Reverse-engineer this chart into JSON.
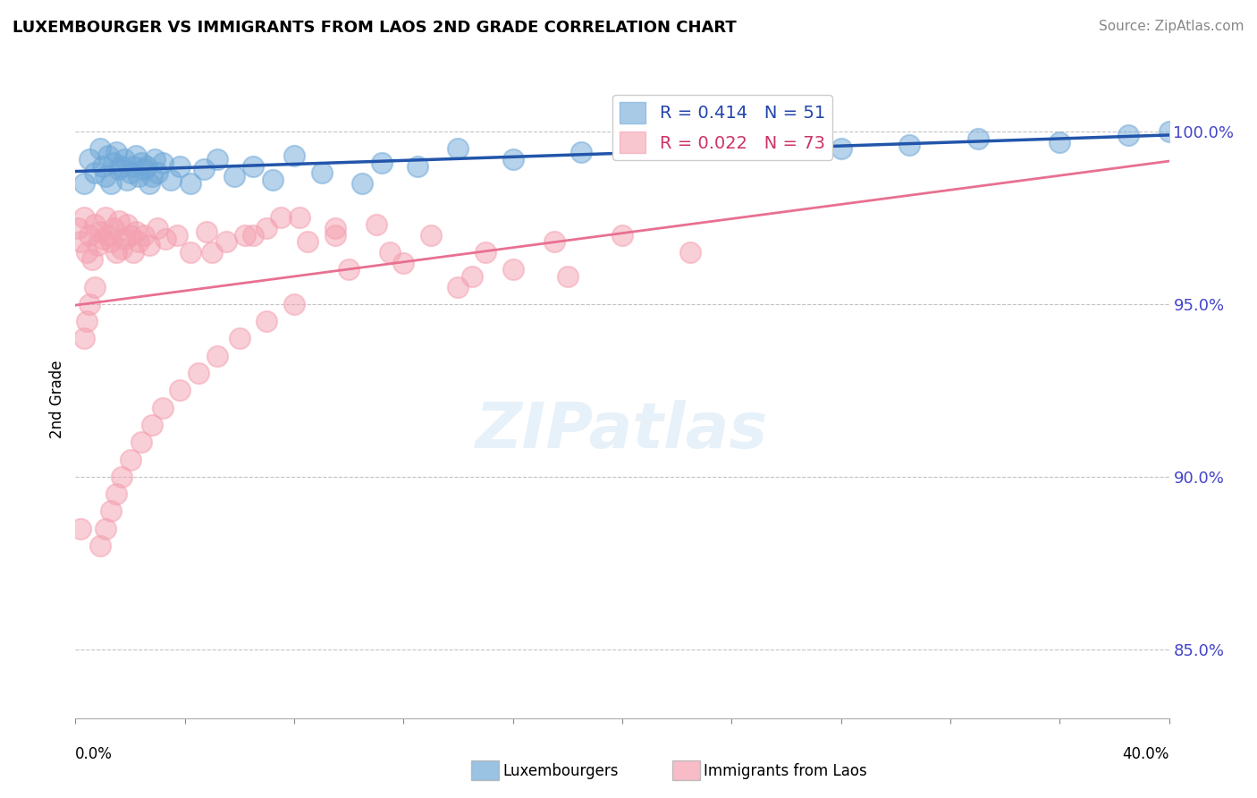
{
  "title": "LUXEMBOURGER VS IMMIGRANTS FROM LAOS 2ND GRADE CORRELATION CHART",
  "source": "Source: ZipAtlas.com",
  "ylabel": "2nd Grade",
  "xlim": [
    0.0,
    40.0
  ],
  "ylim": [
    83.0,
    101.5
  ],
  "yticks": [
    85.0,
    90.0,
    95.0,
    100.0
  ],
  "ytick_labels": [
    "85.0%",
    "90.0%",
    "95.0%",
    "100.0%"
  ],
  "blue_R": 0.414,
  "blue_N": 51,
  "pink_R": 0.022,
  "pink_N": 73,
  "blue_color": "#6fa8d8",
  "pink_color": "#f4a0b0",
  "blue_line_color": "#2255aa",
  "pink_line_color": "#e87090",
  "legend_label_blue": "Luxembourgers",
  "legend_label_pink": "Immigrants from Laos",
  "blue_scatter_x": [
    0.3,
    0.5,
    0.7,
    0.9,
    1.0,
    1.1,
    1.2,
    1.3,
    1.4,
    1.5,
    1.6,
    1.7,
    1.8,
    1.9,
    2.0,
    2.1,
    2.2,
    2.3,
    2.4,
    2.5,
    2.6,
    2.7,
    2.8,
    2.9,
    3.0,
    3.2,
    3.5,
    3.8,
    4.2,
    4.7,
    5.2,
    5.8,
    6.5,
    7.2,
    8.0,
    9.0,
    10.5,
    11.2,
    12.5,
    14.0,
    16.0,
    18.5,
    21.0,
    23.5,
    26.0,
    28.0,
    30.5,
    33.0,
    36.0,
    38.5,
    40.0
  ],
  "blue_scatter_y": [
    98.5,
    99.2,
    98.8,
    99.5,
    99.0,
    98.7,
    99.3,
    98.5,
    99.1,
    99.4,
    98.9,
    99.0,
    99.2,
    98.6,
    98.8,
    99.0,
    99.3,
    98.7,
    99.1,
    98.9,
    99.0,
    98.5,
    98.7,
    99.2,
    98.8,
    99.1,
    98.6,
    99.0,
    98.5,
    98.9,
    99.2,
    98.7,
    99.0,
    98.6,
    99.3,
    98.8,
    98.5,
    99.1,
    99.0,
    99.5,
    99.2,
    99.4,
    99.5,
    99.6,
    99.7,
    99.5,
    99.6,
    99.8,
    99.7,
    99.9,
    100.0
  ],
  "pink_scatter_x": [
    0.1,
    0.2,
    0.3,
    0.4,
    0.5,
    0.6,
    0.7,
    0.8,
    0.9,
    1.0,
    1.1,
    1.2,
    1.3,
    1.4,
    1.5,
    1.6,
    1.7,
    1.8,
    1.9,
    2.0,
    2.1,
    2.2,
    2.3,
    2.5,
    2.7,
    3.0,
    3.3,
    3.7,
    4.2,
    4.8,
    5.5,
    6.2,
    7.0,
    8.2,
    9.5,
    11.0,
    5.0,
    6.5,
    7.5,
    8.5,
    9.5,
    11.5,
    13.0,
    15.0,
    17.5,
    20.0,
    22.5,
    14.5,
    10.0,
    12.0,
    14.0,
    16.0,
    18.0,
    8.0,
    7.0,
    6.0,
    5.2,
    4.5,
    3.8,
    3.2,
    2.8,
    2.4,
    2.0,
    1.7,
    1.5,
    1.3,
    1.1,
    0.9,
    0.7,
    0.5,
    0.4,
    0.3,
    0.2
  ],
  "pink_scatter_y": [
    97.2,
    96.8,
    97.5,
    96.5,
    97.0,
    96.3,
    97.3,
    96.7,
    97.1,
    96.9,
    97.5,
    97.0,
    96.8,
    97.2,
    96.5,
    97.4,
    96.6,
    96.9,
    97.3,
    97.0,
    96.5,
    97.1,
    96.8,
    97.0,
    96.7,
    97.2,
    96.9,
    97.0,
    96.5,
    97.1,
    96.8,
    97.0,
    97.2,
    97.5,
    97.0,
    97.3,
    96.5,
    97.0,
    97.5,
    96.8,
    97.2,
    96.5,
    97.0,
    96.5,
    96.8,
    97.0,
    96.5,
    95.8,
    96.0,
    96.2,
    95.5,
    96.0,
    95.8,
    95.0,
    94.5,
    94.0,
    93.5,
    93.0,
    92.5,
    92.0,
    91.5,
    91.0,
    90.5,
    90.0,
    89.5,
    89.0,
    88.5,
    88.0,
    95.5,
    95.0,
    94.5,
    94.0,
    88.5
  ]
}
